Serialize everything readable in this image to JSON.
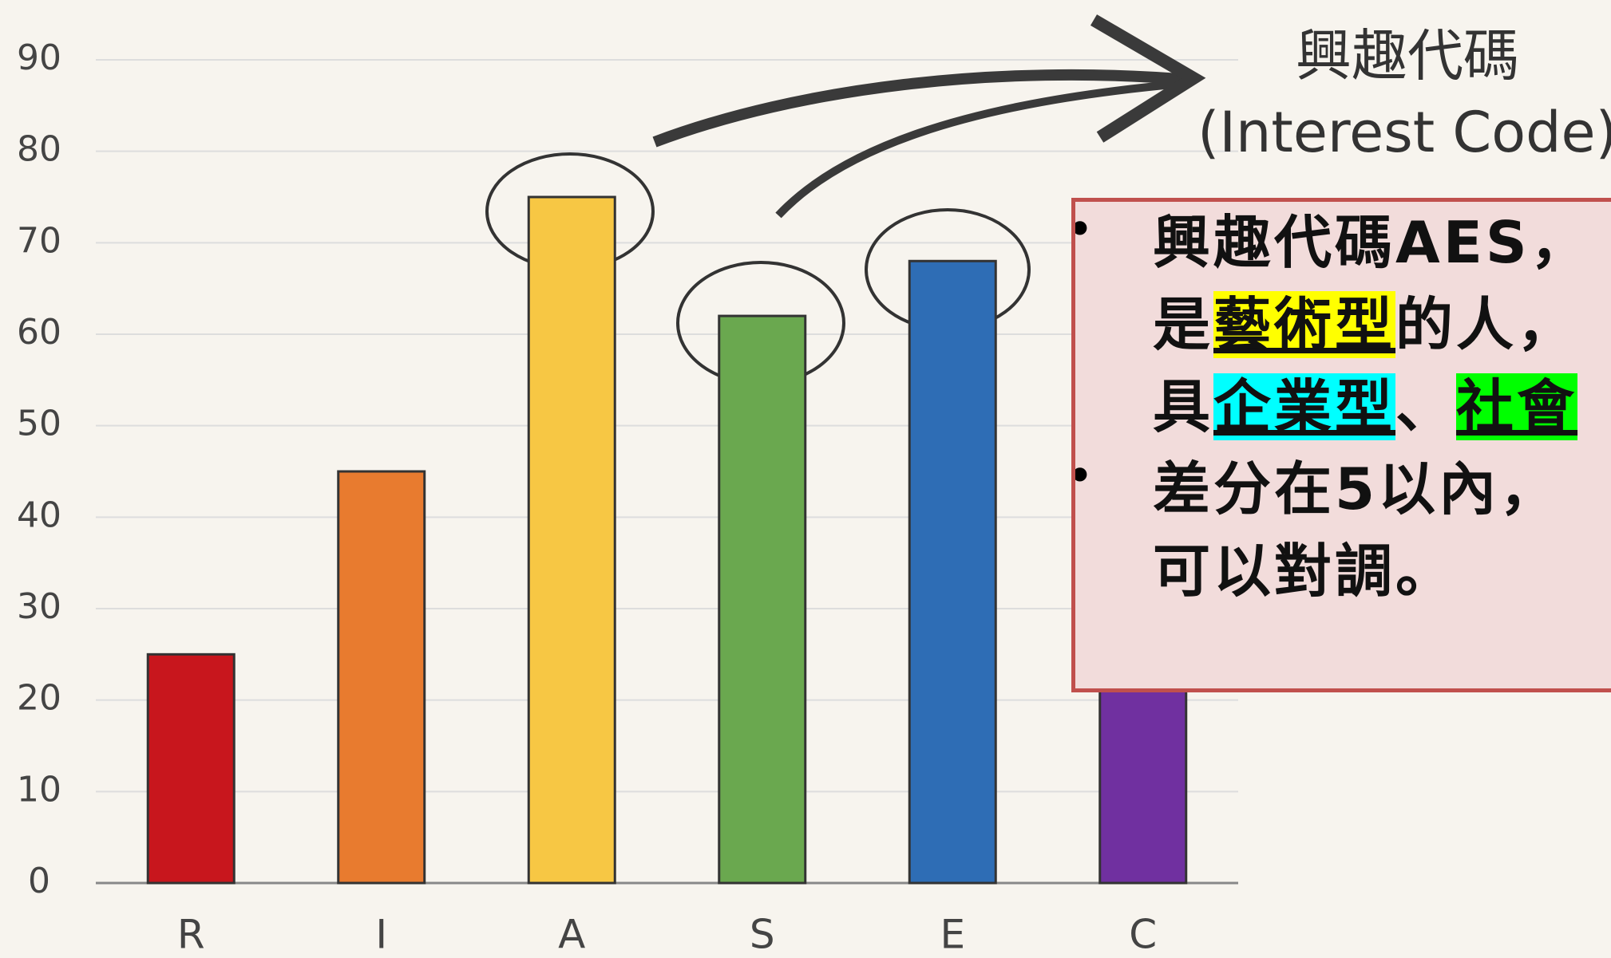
{
  "chart_data": {
    "type": "bar",
    "title": "興趣代碼",
    "subtitle": "(Interest Code)",
    "categories": [
      "R",
      "I",
      "A",
      "S",
      "E",
      "C"
    ],
    "values": [
      25,
      45,
      75,
      62,
      68,
      50
    ],
    "colors": [
      "#c8161d",
      "#e87b2f",
      "#f7c744",
      "#6aa84f",
      "#2e6db5",
      "#7030a0"
    ],
    "ylim": [
      0,
      90
    ],
    "yticks": [
      0,
      10,
      20,
      30,
      40,
      50,
      60,
      70,
      80,
      90
    ],
    "grid": true
  },
  "textbox": {
    "bullets": [
      [
        [
          {
            "text": "興趣代碼AES，"
          }
        ],
        [
          {
            "text": "是"
          },
          {
            "text": "藝術型",
            "highlight": "#ffff00"
          },
          {
            "text": "的人，"
          }
        ],
        [
          {
            "text": "具"
          },
          {
            "text": "企業型",
            "highlight": "#00ffff"
          },
          {
            "text": "、"
          },
          {
            "text": "社會",
            "highlight": "#00ff00"
          }
        ]
      ],
      [
        [
          {
            "text": "差分在5以內，"
          }
        ],
        [
          {
            "text": "可以對調。"
          }
        ]
      ]
    ]
  }
}
